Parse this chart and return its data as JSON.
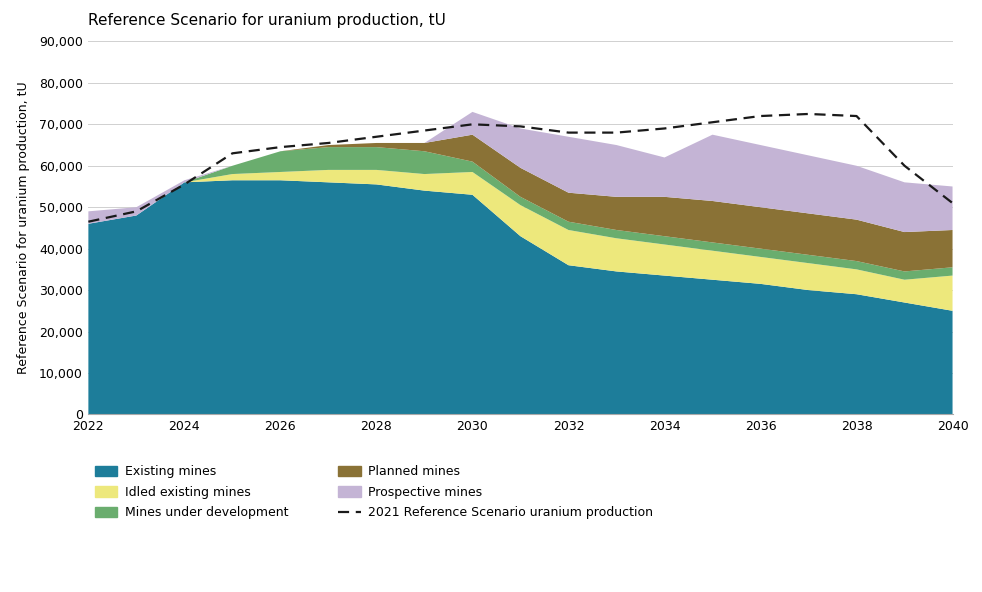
{
  "title": "Reference Scenario for uranium production, tU",
  "ylabel": "Reference Scenario for uranium production, tU",
  "years": [
    2022,
    2023,
    2024,
    2025,
    2026,
    2027,
    2028,
    2029,
    2030,
    2031,
    2032,
    2033,
    2034,
    2035,
    2036,
    2037,
    2038,
    2039,
    2040
  ],
  "existing_mines": [
    46000,
    48000,
    56000,
    56500,
    56500,
    56000,
    55500,
    54000,
    53000,
    43000,
    36000,
    34500,
    33500,
    32500,
    31500,
    30000,
    29000,
    27000,
    25000
  ],
  "idled_existing": [
    0,
    0,
    0,
    1500,
    2000,
    3000,
    3500,
    4000,
    5500,
    7500,
    8500,
    8000,
    7500,
    7000,
    6500,
    6500,
    6000,
    5500,
    8500
  ],
  "mines_under_dev": [
    0,
    0,
    0,
    2000,
    5000,
    5500,
    5500,
    5500,
    2500,
    2000,
    2000,
    2000,
    2000,
    2000,
    2000,
    2000,
    2000,
    2000,
    2000
  ],
  "planned_mines": [
    0,
    0,
    0,
    0,
    0,
    500,
    1000,
    2000,
    6500,
    7000,
    7000,
    8000,
    9500,
    10000,
    10000,
    10000,
    10000,
    9500,
    9000
  ],
  "prospective_mines": [
    3000,
    2000,
    500,
    0,
    0,
    0,
    0,
    0,
    5500,
    9500,
    13500,
    12500,
    9500,
    16000,
    15000,
    14000,
    13000,
    12000,
    10500
  ],
  "dashed_line": [
    46500,
    49000,
    55500,
    63000,
    64500,
    65500,
    67000,
    68500,
    70000,
    69500,
    68000,
    68000,
    69000,
    70500,
    72000,
    72500,
    72000,
    60000,
    51000
  ],
  "color_existing": "#1d7d9a",
  "color_idled": "#ede87c",
  "color_under_dev": "#6aad6e",
  "color_planned": "#8a7236",
  "color_prospective": "#c4b4d5",
  "color_dashed": "#1a1a1a",
  "ylim": [
    0,
    90000
  ],
  "yticks": [
    0,
    10000,
    20000,
    30000,
    40000,
    50000,
    60000,
    70000,
    80000,
    90000
  ],
  "xlim": [
    2022,
    2040
  ],
  "xticks": [
    2022,
    2024,
    2026,
    2028,
    2030,
    2032,
    2034,
    2036,
    2038,
    2040
  ],
  "bg_color": "#ffffff",
  "grid_color": "#d0d0d0"
}
